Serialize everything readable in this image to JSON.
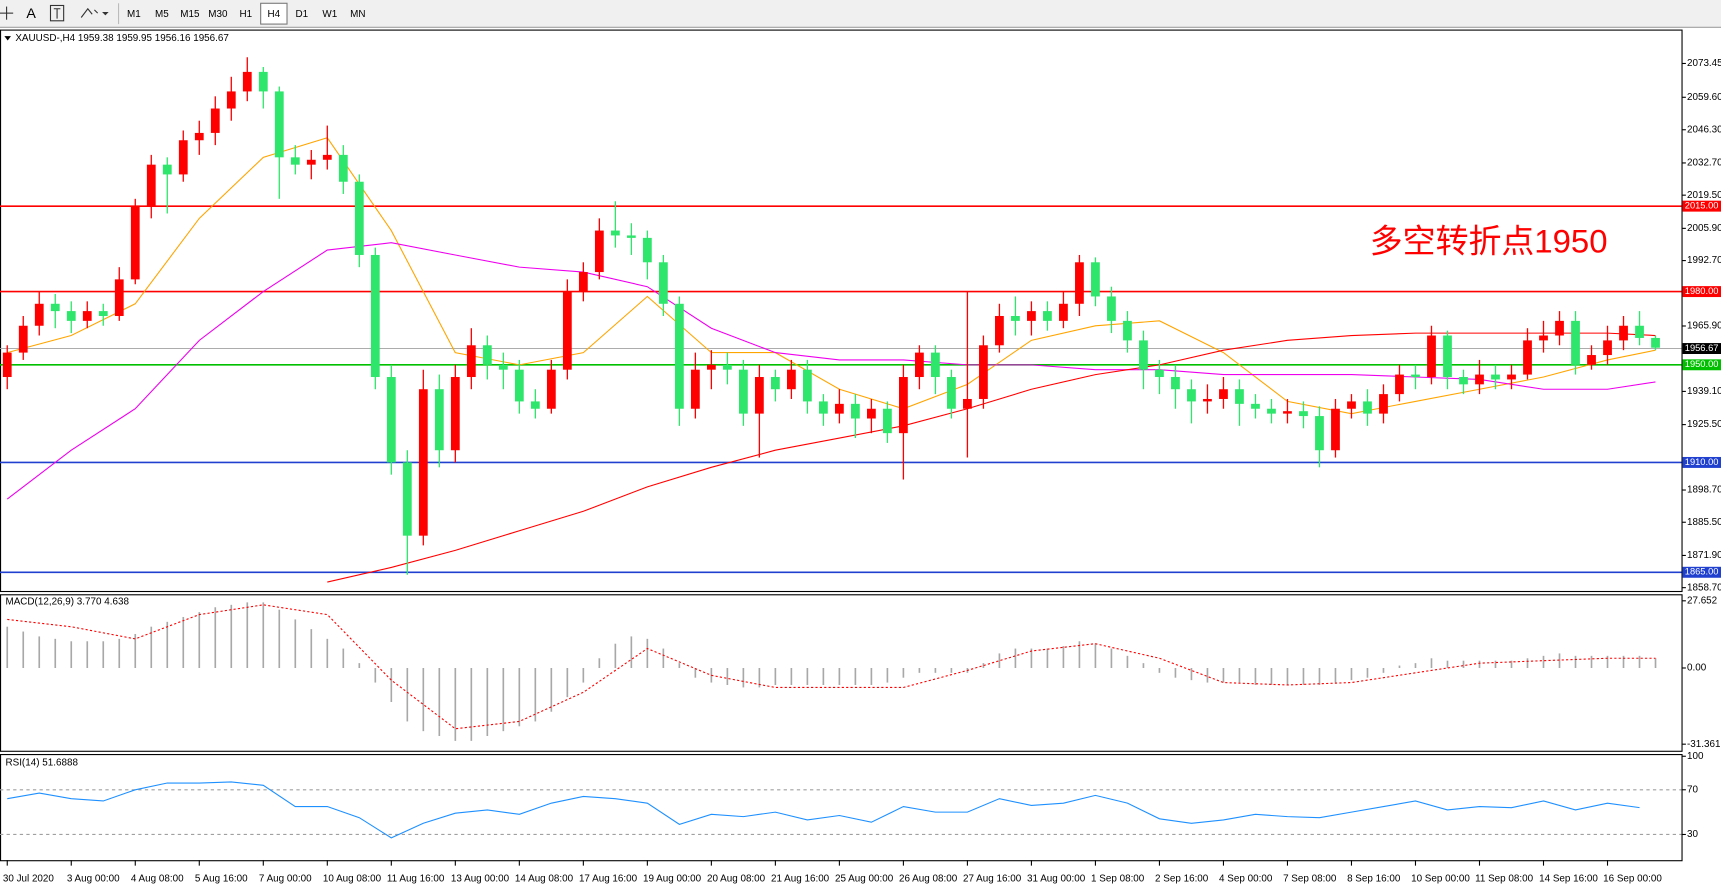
{
  "toolbar": {
    "tool_text": "A",
    "timeframes": [
      "M1",
      "M5",
      "M15",
      "M30",
      "H1",
      "H4",
      "D1",
      "W1",
      "MN"
    ],
    "active_index": 5
  },
  "chart_data": [
    {
      "type": "candlestick",
      "title": "XAUUSD-,H4 1959.38 1959.95 1956.16 1956.67",
      "up_color": "#ff0000",
      "down_color": "#2ee66b",
      "categories": [
        "30 Jul 2020",
        null,
        null,
        null,
        "3 Aug 00:00",
        null,
        null,
        null,
        "4 Aug 08:00",
        null,
        null,
        null,
        "5 Aug 16:00",
        null,
        null,
        null,
        "7 Aug 00:00",
        null,
        null,
        null,
        "10 Aug 08:00",
        null,
        null,
        null,
        "11 Aug 16:00",
        null,
        null,
        null,
        "13 Aug 00:00",
        null,
        null,
        null,
        "14 Aug 08:00",
        null,
        null,
        null,
        "17 Aug 16:00",
        null,
        null,
        null,
        "19 Aug 00:00",
        null,
        null,
        null,
        "20 Aug 08:00",
        null,
        null,
        null,
        "21 Aug 16:00",
        null,
        null,
        null,
        "25 Aug 00:00",
        null,
        null,
        null,
        "26 Aug 08:00",
        null,
        null,
        null,
        "27 Aug 16:00",
        null,
        null,
        null,
        "31 Aug 00:00",
        null,
        null,
        null,
        "1 Sep 08:00",
        null,
        null,
        null,
        "2 Sep 16:00",
        null,
        null,
        null,
        "4 Sep 00:00",
        null,
        null,
        null,
        "7 Sep 08:00",
        null,
        null,
        null,
        "8 Sep 16:00",
        null,
        null,
        null,
        "10 Sep 00:00",
        null,
        null,
        null,
        "11 Sep 08:00",
        null,
        null,
        null,
        "14 Sep 16:00",
        null,
        null,
        null,
        "16 Sep 00:00",
        null,
        null,
        null
      ],
      "open": [
        1945,
        1955,
        1966,
        1975,
        1972,
        1968,
        1972,
        1970,
        1985,
        2015,
        2032,
        2028,
        2042,
        2045,
        2055,
        2062,
        2070,
        2062,
        2035,
        2032,
        2034,
        2036,
        2025,
        1995,
        1945,
        1910,
        1880,
        1940,
        1915,
        1945,
        1958,
        1950,
        1948,
        1935,
        1932,
        1948,
        1980,
        1988,
        2005,
        2003,
        2002,
        1992,
        1975,
        1932,
        1948,
        1950,
        1948,
        1930,
        1945,
        1940,
        1948,
        1935,
        1930,
        1934,
        1928,
        1932,
        1922,
        1945,
        1955,
        1945,
        1932,
        1936,
        1958,
        1970,
        1968,
        1972,
        1968,
        1975,
        1992,
        1978,
        1968,
        1960,
        1948,
        1945,
        1940,
        1935,
        1936,
        1940,
        1934,
        1932,
        1930,
        1931,
        1929,
        1915,
        1932,
        1935,
        1930,
        1938,
        1946,
        1945,
        1962,
        1945,
        1942,
        1946,
        1944,
        1946,
        1960,
        1962,
        1968,
        1950,
        1954,
        1960,
        1966,
        1961
      ],
      "high": [
        1958,
        1970,
        1980,
        1979,
        1976,
        1976,
        1975,
        1990,
        2018,
        2036,
        2035,
        2046,
        2050,
        2060,
        2068,
        2076,
        2072,
        2064,
        2040,
        2038,
        2048,
        2040,
        2028,
        1998,
        1950,
        1915,
        1948,
        1946,
        1950,
        1965,
        1962,
        1955,
        1952,
        1940,
        1952,
        1985,
        1992,
        2010,
        2017,
        2008,
        2005,
        1995,
        1978,
        1955,
        1956,
        1955,
        1952,
        1950,
        1948,
        1952,
        1952,
        1938,
        1940,
        1938,
        1936,
        1935,
        1950,
        1958,
        1958,
        1948,
        1980,
        1962,
        1975,
        1978,
        1976,
        1976,
        1980,
        1995,
        1994,
        1982,
        1972,
        1964,
        1952,
        1950,
        1944,
        1942,
        1945,
        1944,
        1938,
        1936,
        1936,
        1935,
        1933,
        1936,
        1938,
        1940,
        1942,
        1950,
        1950,
        1966,
        1964,
        1948,
        1952,
        1950,
        1950,
        1965,
        1968,
        1972,
        1972,
        1958,
        1966,
        1970,
        1972,
        1962
      ],
      "low": [
        1940,
        1952,
        1962,
        1965,
        1963,
        1965,
        1966,
        1968,
        1983,
        2010,
        2012,
        2025,
        2036,
        2040,
        2050,
        2058,
        2055,
        2018,
        2028,
        2026,
        2030,
        2020,
        1990,
        1940,
        1905,
        1864,
        1876,
        1908,
        1910,
        1940,
        1944,
        1940,
        1930,
        1928,
        1930,
        1944,
        1976,
        1985,
        1998,
        1995,
        1985,
        1970,
        1925,
        1928,
        1940,
        1942,
        1925,
        1912,
        1935,
        1936,
        1930,
        1925,
        1926,
        1920,
        1922,
        1918,
        1903,
        1940,
        1938,
        1928,
        1912,
        1932,
        1955,
        1962,
        1962,
        1964,
        1965,
        1970,
        1974,
        1963,
        1955,
        1940,
        1938,
        1932,
        1926,
        1930,
        1932,
        1925,
        1928,
        1926,
        1926,
        1924,
        1908,
        1912,
        1928,
        1925,
        1926,
        1935,
        1940,
        1942,
        1940,
        1938,
        1938,
        1940,
        1940,
        1944,
        1955,
        1958,
        1946,
        1948,
        1950,
        1956,
        1958,
        1956
      ],
      "close": [
        1955,
        1966,
        1975,
        1972,
        1968,
        1972,
        1970,
        1985,
        2015,
        2032,
        2028,
        2042,
        2045,
        2055,
        2062,
        2070,
        2062,
        2035,
        2032,
        2034,
        2036,
        2025,
        1995,
        1945,
        1910,
        1880,
        1940,
        1915,
        1945,
        1958,
        1950,
        1948,
        1935,
        1932,
        1948,
        1980,
        1988,
        2005,
        2003,
        2002,
        1992,
        1975,
        1932,
        1948,
        1950,
        1948,
        1930,
        1945,
        1940,
        1948,
        1935,
        1930,
        1934,
        1928,
        1932,
        1922,
        1945,
        1955,
        1945,
        1932,
        1936,
        1958,
        1970,
        1968,
        1972,
        1968,
        1975,
        1992,
        1978,
        1968,
        1960,
        1948,
        1945,
        1940,
        1935,
        1936,
        1940,
        1934,
        1932,
        1930,
        1931,
        1929,
        1915,
        1932,
        1935,
        1930,
        1938,
        1946,
        1945,
        1962,
        1945,
        1942,
        1946,
        1944,
        1946,
        1960,
        1962,
        1968,
        1950,
        1954,
        1960,
        1966,
        1961,
        1957
      ],
      "lines": [
        {
          "color": "#ffa500",
          "x": [
            0,
            4,
            8,
            12,
            16,
            20,
            24,
            28,
            32,
            36,
            40,
            44,
            48,
            52,
            56,
            60,
            64,
            68,
            72,
            76,
            80,
            84,
            88,
            92,
            96,
            100,
            103
          ],
          "values": [
            1955,
            1962,
            1975,
            2010,
            2035,
            2043,
            2005,
            1955,
            1950,
            1955,
            1978,
            1955,
            1955,
            1940,
            1932,
            1942,
            1960,
            1966,
            1968,
            1955,
            1935,
            1930,
            1935,
            1940,
            1945,
            1952,
            1956
          ]
        },
        {
          "color": "#ee00ee",
          "x": [
            0,
            4,
            8,
            12,
            16,
            20,
            24,
            28,
            32,
            36,
            40,
            44,
            48,
            52,
            56,
            60,
            64,
            68,
            72,
            76,
            80,
            84,
            88,
            92,
            96,
            100,
            103
          ],
          "values": [
            1895,
            1915,
            1932,
            1960,
            1980,
            1997,
            2000,
            1995,
            1990,
            1988,
            1982,
            1965,
            1955,
            1952,
            1952,
            1950,
            1950,
            1948,
            1948,
            1946,
            1946,
            1946,
            1945,
            1944,
            1940,
            1940,
            1943
          ]
        },
        {
          "color": "#ff0000",
          "x": [
            0,
            4,
            8,
            12,
            16,
            20,
            24,
            28,
            32,
            36,
            40,
            44,
            48,
            52,
            56,
            60,
            64,
            68,
            72,
            76,
            80,
            84,
            88,
            92,
            96,
            100,
            103
          ],
          "values": [
            null,
            null,
            null,
            null,
            null,
            1861,
            1867,
            1874,
            1882,
            1890,
            1900,
            1908,
            1915,
            1920,
            1925,
            1932,
            1940,
            1946,
            1950,
            1956,
            1960,
            1962,
            1963,
            1963,
            1963,
            1963,
            1962
          ]
        }
      ],
      "levels": [
        {
          "value": 2015,
          "label": "2015.00",
          "color": "#ff0000"
        },
        {
          "value": 1980,
          "label": "1980.00",
          "color": "#ff0000"
        },
        {
          "value": 1950,
          "label": "1950.00",
          "color": "#00c000"
        },
        {
          "value": 1910,
          "label": "1910.00",
          "color": "#2040d0"
        },
        {
          "value": 1865,
          "label": "1865.00",
          "color": "#2040d0"
        }
      ],
      "current": 1956.67,
      "annotation": {
        "text": "多空转折点1950",
        "color": "#ff0000"
      },
      "ylim": [
        1857.35,
        2087.35
      ],
      "yticks": [
        2073.45,
        {
          "value": 2059.6,
          "label": "2059.60"
        },
        {
          "value": 2046.3,
          "label": "2046.30"
        },
        {
          "value": 2032.7,
          "label": "2032.70"
        },
        {
          "value": 2019.5,
          "label": "2019.50"
        },
        {
          "value": 2005.9,
          "label": "2005.90"
        },
        {
          "value": 1992.7,
          "label": "1992.70"
        },
        {
          "value": 1965.9,
          "label": "1965.90"
        },
        {
          "value": 1939.1,
          "label": "1939.10"
        },
        {
          "value": 1925.5,
          "label": "1925.50"
        },
        {
          "value": 1898.7,
          "label": "1898.70"
        },
        {
          "value": 1885.5,
          "label": "1885.50"
        },
        {
          "value": 1871.9,
          "label": "1871.90"
        },
        {
          "value": 1858.7,
          "label": "1858.70"
        }
      ]
    },
    {
      "type": "bar",
      "title": "MACD(12,26,9) 3.770 4.638",
      "color": "#a8a8a8",
      "values": [
        17,
        15,
        13,
        12,
        11,
        11,
        11,
        12,
        14,
        17,
        19,
        21,
        23,
        25,
        26,
        27,
        27,
        24,
        20,
        16,
        12,
        8,
        2,
        -6,
        -14,
        -22,
        -26,
        -28,
        -30,
        -30,
        -28,
        -26,
        -24,
        -22,
        -18,
        -12,
        -6,
        4,
        10,
        13,
        12,
        8,
        2,
        -4,
        -6,
        -7,
        -8,
        -8,
        -7,
        -7,
        -7,
        -7,
        -7,
        -7,
        -7,
        -6,
        -4,
        -2,
        -2,
        -2,
        -2,
        2,
        6,
        8,
        8,
        8,
        9,
        11,
        10,
        8,
        5,
        2,
        -2,
        -4,
        -5,
        -6,
        -6,
        -6,
        -7,
        -7,
        -7,
        -7,
        -7,
        -6,
        -5,
        -4,
        -2,
        1,
        2,
        4,
        3,
        3,
        3,
        3,
        3,
        4,
        5,
        6,
        5,
        5,
        5,
        5,
        5,
        4
      ],
      "signal": {
        "color": "#ff0000",
        "x": [
          0,
          4,
          8,
          12,
          16,
          20,
          24,
          28,
          32,
          36,
          40,
          44,
          48,
          52,
          56,
          60,
          64,
          68,
          72,
          76,
          80,
          84,
          88,
          92,
          96,
          100,
          103
        ],
        "values": [
          20,
          17,
          12,
          22,
          26,
          22,
          -5,
          -25,
          -22,
          -10,
          8,
          -3,
          -8,
          -8,
          -8,
          -1,
          7,
          10,
          4,
          -6,
          -7,
          -6,
          -2,
          2,
          3,
          4,
          4
        ]
      },
      "ylim": [
        -34.06,
        30.36
      ],
      "yticks": [
        27.652,
        {
          "value": 0,
          "label": "0.00"
        },
        -31.361
      ]
    },
    {
      "type": "line",
      "title": "RSI(14) 51.6888",
      "color": "#1e90ff",
      "x": [
        0,
        2,
        4,
        6,
        8,
        10,
        12,
        14,
        16,
        18,
        20,
        22,
        24,
        26,
        28,
        30,
        32,
        34,
        36,
        38,
        40,
        42,
        44,
        46,
        48,
        50,
        52,
        54,
        56,
        58,
        60,
        62,
        64,
        66,
        68,
        70,
        72,
        74,
        76,
        78,
        80,
        82,
        84,
        86,
        88,
        90,
        92,
        94,
        96,
        98,
        100,
        102
      ],
      "values": [
        62,
        67,
        62,
        60,
        70,
        76,
        76,
        77,
        74,
        55,
        55,
        45,
        27,
        40,
        49,
        52,
        48,
        58,
        64,
        62,
        58,
        39,
        48,
        46,
        50,
        43,
        47,
        41,
        55,
        50,
        50,
        62,
        56,
        58,
        65,
        58,
        44,
        40,
        43,
        48,
        46,
        45,
        50,
        55,
        60,
        52,
        55,
        54,
        60,
        52,
        58,
        54
      ],
      "levels": [
        70,
        30
      ],
      "ylim": [
        7,
        102
      ],
      "yticks": [
        100,
        70,
        30
      ]
    }
  ]
}
